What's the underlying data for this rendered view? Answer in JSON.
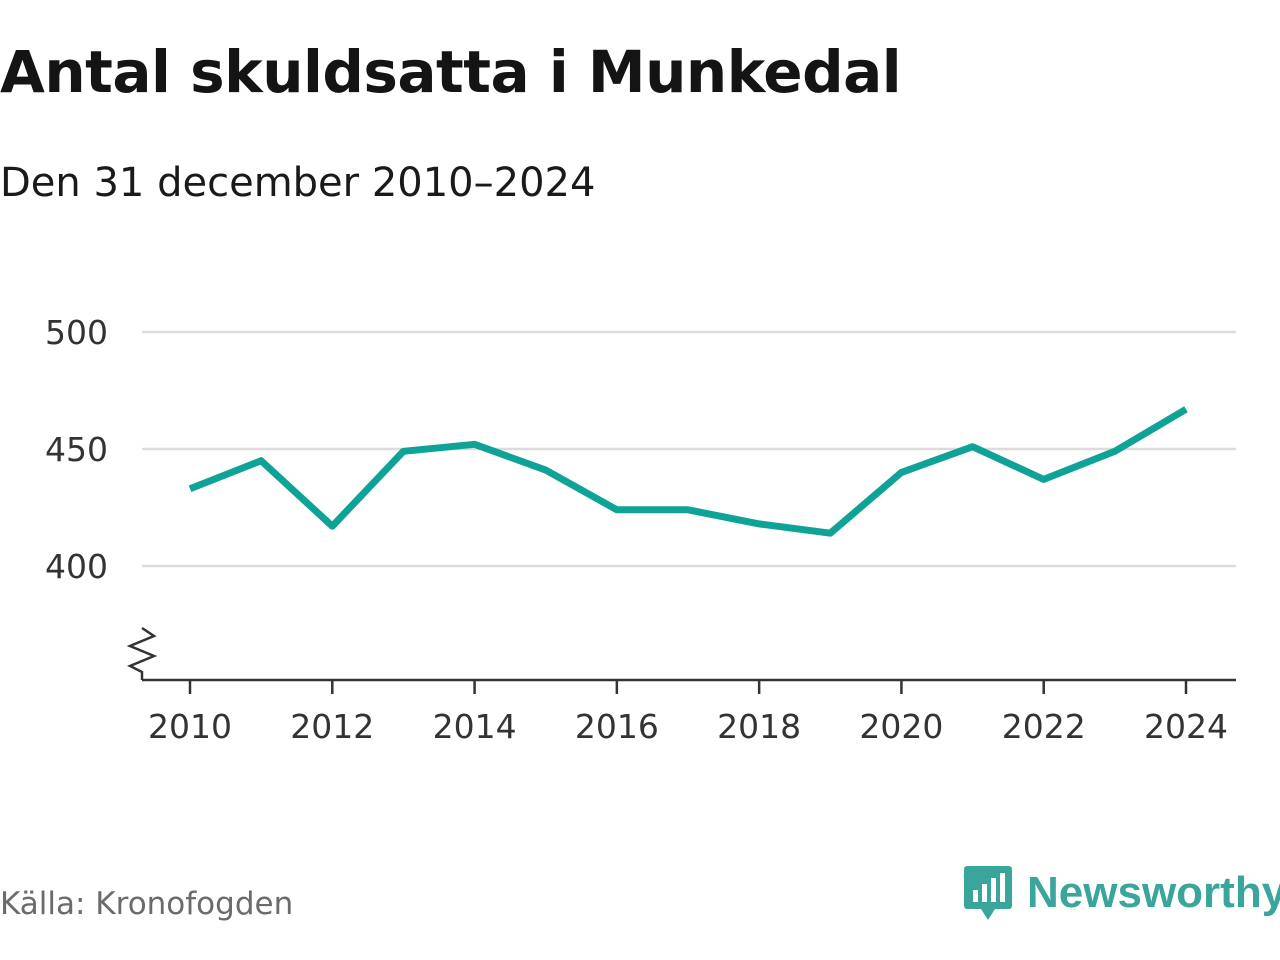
{
  "title": "Antal skuldsatta i Munkedal",
  "subtitle": "Den 31 december 2010–2024",
  "source": "Källa: Kronofogden",
  "brand": {
    "name": "Newsworthy",
    "logo_icon": "newsworthy-logo-icon",
    "color": "#3aa59a"
  },
  "chart_data": {
    "type": "line",
    "x": [
      2010,
      2011,
      2012,
      2013,
      2014,
      2015,
      2016,
      2017,
      2018,
      2019,
      2020,
      2021,
      2022,
      2023,
      2024
    ],
    "series": [
      {
        "values": [
          433,
          445,
          417,
          449,
          452,
          441,
          424,
          424,
          418,
          414,
          440,
          451,
          437,
          449,
          467
        ]
      }
    ],
    "x_ticks": [
      "2010",
      "2012",
      "2014",
      "2016",
      "2018",
      "2020",
      "2022",
      "2024"
    ],
    "y_ticks": [
      "400",
      "450",
      "500"
    ],
    "ylim": [
      352,
      500
    ],
    "xlim": [
      2010,
      2024
    ],
    "y_axis_break": true,
    "grid": true,
    "line_color": "#0fa398",
    "title": "Antal skuldsatta i Munkedal",
    "xlabel": "",
    "ylabel": ""
  }
}
